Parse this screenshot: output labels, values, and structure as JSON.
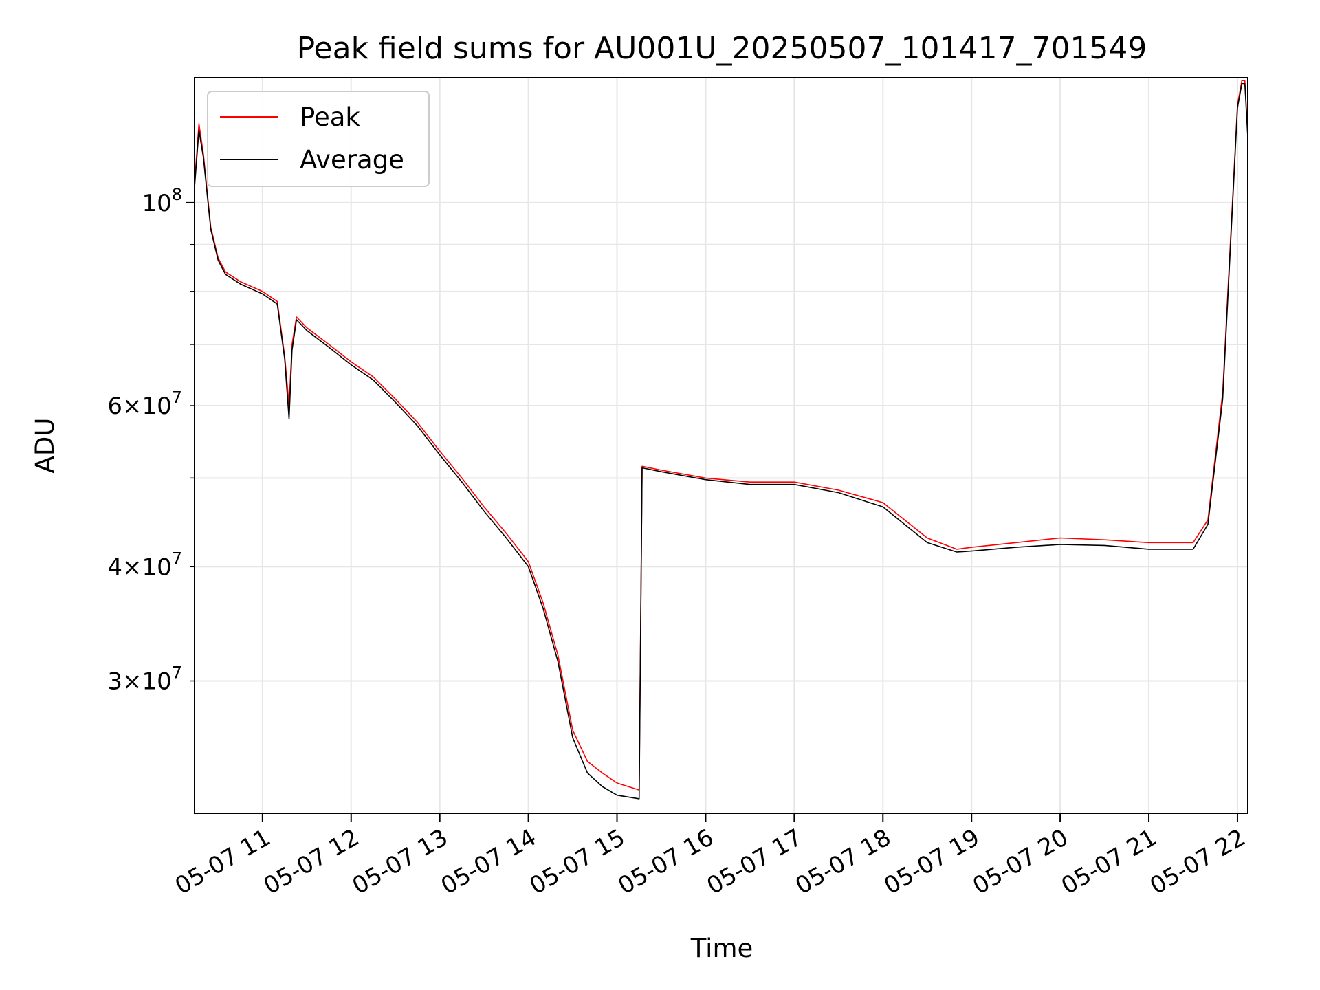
{
  "chart_data": {
    "type": "line",
    "title": "Peak field sums for AU001U_20250507_101417_701549",
    "xlabel": "Time",
    "ylabel": "ADU",
    "x_scale": "time",
    "y_scale": "log",
    "xlim": [
      "05-07 10:14",
      "05-07 22:07"
    ],
    "ylim": [
      21500000,
      137000000
    ],
    "grid": true,
    "legend_position": "top-left",
    "x_ticks": [
      "05-07 11",
      "05-07 12",
      "05-07 13",
      "05-07 14",
      "05-07 15",
      "05-07 16",
      "05-07 17",
      "05-07 18",
      "05-07 19",
      "05-07 20",
      "05-07 21",
      "05-07 22"
    ],
    "y_major_ticks": [
      {
        "value": 100000000,
        "mantissa": "",
        "exponent": "8"
      }
    ],
    "y_minor_ticks": [
      {
        "value": 30000000,
        "mantissa": "3",
        "exponent": "7"
      },
      {
        "value": 40000000,
        "mantissa": "4",
        "exponent": "7"
      },
      {
        "value": 60000000,
        "mantissa": "6",
        "exponent": "7"
      }
    ],
    "series": [
      {
        "name": "Peak",
        "color": "#ff0000",
        "x": [
          "05-07 10:14",
          "05-07 10:17",
          "05-07 10:20",
          "05-07 10:25",
          "05-07 10:30",
          "05-07 10:35",
          "05-07 10:45",
          "05-07 11:00",
          "05-07 11:10",
          "05-07 11:15",
          "05-07 11:18",
          "05-07 11:20",
          "05-07 11:23",
          "05-07 11:30",
          "05-07 11:45",
          "05-07 12:00",
          "05-07 12:15",
          "05-07 12:30",
          "05-07 12:45",
          "05-07 13:00",
          "05-07 13:15",
          "05-07 13:30",
          "05-07 13:45",
          "05-07 14:00",
          "05-07 14:10",
          "05-07 14:20",
          "05-07 14:30",
          "05-07 14:40",
          "05-07 14:50",
          "05-07 15:00",
          "05-07 15:15",
          "05-07 15:17",
          "05-07 15:30",
          "05-07 16:00",
          "05-07 16:30",
          "05-07 17:00",
          "05-07 17:30",
          "05-07 18:00",
          "05-07 18:30",
          "05-07 18:50",
          "05-07 19:00",
          "05-07 19:30",
          "05-07 20:00",
          "05-07 20:30",
          "05-07 21:00",
          "05-07 21:30",
          "05-07 21:40",
          "05-07 21:50",
          "05-07 22:00",
          "05-07 22:03",
          "05-07 22:05",
          "05-07 22:07"
        ],
        "values": [
          105000000,
          122000000,
          113000000,
          94000000,
          87000000,
          84000000,
          82000000,
          80000000,
          78000000,
          68000000,
          60000000,
          70000000,
          75000000,
          73000000,
          70000000,
          67000000,
          64500000,
          61000000,
          57500000,
          53500000,
          50000000,
          46500000,
          43500000,
          40500000,
          36500000,
          32000000,
          26500000,
          24500000,
          23800000,
          23200000,
          22800000,
          51500000,
          51000000,
          50000000,
          49500000,
          49500000,
          48500000,
          47000000,
          43000000,
          41800000,
          42000000,
          42500000,
          43000000,
          42800000,
          42500000,
          42500000,
          45000000,
          62000000,
          128000000,
          136000000,
          136000000,
          119000000
        ]
      },
      {
        "name": "Average",
        "color": "#000000",
        "x": [
          "05-07 10:14",
          "05-07 10:17",
          "05-07 10:20",
          "05-07 10:25",
          "05-07 10:30",
          "05-07 10:35",
          "05-07 10:45",
          "05-07 11:00",
          "05-07 11:10",
          "05-07 11:15",
          "05-07 11:18",
          "05-07 11:20",
          "05-07 11:23",
          "05-07 11:30",
          "05-07 11:45",
          "05-07 12:00",
          "05-07 12:15",
          "05-07 12:30",
          "05-07 12:45",
          "05-07 13:00",
          "05-07 13:15",
          "05-07 13:30",
          "05-07 13:45",
          "05-07 14:00",
          "05-07 14:10",
          "05-07 14:20",
          "05-07 14:30",
          "05-07 14:40",
          "05-07 14:50",
          "05-07 15:00",
          "05-07 15:15",
          "05-07 15:17",
          "05-07 15:30",
          "05-07 16:00",
          "05-07 16:30",
          "05-07 17:00",
          "05-07 17:30",
          "05-07 18:00",
          "05-07 18:30",
          "05-07 18:50",
          "05-07 19:00",
          "05-07 19:30",
          "05-07 20:00",
          "05-07 20:30",
          "05-07 21:00",
          "05-07 21:30",
          "05-07 21:40",
          "05-07 21:50",
          "05-07 22:00",
          "05-07 22:03",
          "05-07 22:05",
          "05-07 22:07"
        ],
        "values": [
          104000000,
          120000000,
          112000000,
          93500000,
          86500000,
          83500000,
          81500000,
          79500000,
          77500000,
          67500000,
          58000000,
          69000000,
          74500000,
          72500000,
          69500000,
          66500000,
          64000000,
          60500000,
          57000000,
          53000000,
          49500000,
          46000000,
          43000000,
          40000000,
          36000000,
          31500000,
          26000000,
          23800000,
          23000000,
          22500000,
          22300000,
          51300000,
          50800000,
          49800000,
          49200000,
          49200000,
          48200000,
          46500000,
          42500000,
          41500000,
          41600000,
          42000000,
          42300000,
          42200000,
          41800000,
          41800000,
          44500000,
          61000000,
          127000000,
          135000000,
          135000000,
          118000000
        ]
      }
    ]
  }
}
